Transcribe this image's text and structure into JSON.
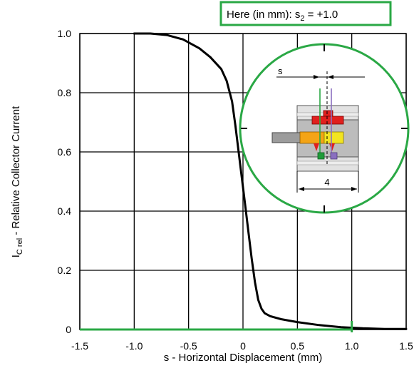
{
  "annotation": {
    "prefix": "Here (in mm): s",
    "sub": "2",
    "suffix": " = +1.0",
    "color": "#2aa845"
  },
  "inset": {
    "label_s": "s",
    "label_width": "4",
    "circle_color": "#2aa845"
  },
  "chart_data": {
    "type": "line",
    "title": "",
    "xlabel": "s - Horizontal Displacement (mm)",
    "ylabel_main": "I",
    "ylabel_sub": "C rel",
    "ylabel_rest": " - Relative Collector Current",
    "xlim": [
      -1.5,
      1.5
    ],
    "ylim": [
      0,
      1.0
    ],
    "x_ticks": [
      -1.5,
      -1.0,
      -0.5,
      0,
      0.5,
      1.0,
      1.5
    ],
    "x_tick_labels": [
      "-1.5",
      "-1.0",
      "-0.5",
      "0",
      "0.5",
      "1.0",
      "1.5"
    ],
    "y_ticks": [
      0,
      0.2,
      0.4,
      0.6,
      0.8,
      1.0
    ],
    "y_tick_labels": [
      "0",
      "0.2",
      "0.4",
      "0.6",
      "0.8",
      "1.0"
    ],
    "grid": true,
    "series": [
      {
        "color": "#000000",
        "x": [
          -1.0,
          -0.85,
          -0.7,
          -0.55,
          -0.4,
          -0.3,
          -0.2,
          -0.15,
          -0.1,
          -0.07,
          -0.04,
          -0.01,
          0.02,
          0.05,
          0.08,
          0.11,
          0.14,
          0.17,
          0.2,
          0.25,
          0.35,
          0.5,
          0.7,
          0.9,
          1.1,
          1.3,
          1.5
        ],
        "y": [
          1.0,
          1.0,
          0.995,
          0.98,
          0.95,
          0.92,
          0.88,
          0.84,
          0.77,
          0.69,
          0.6,
          0.51,
          0.42,
          0.33,
          0.24,
          0.16,
          0.1,
          0.07,
          0.055,
          0.045,
          0.035,
          0.025,
          0.015,
          0.008,
          0.004,
          0.002,
          0.002
        ]
      }
    ],
    "marker": {
      "x": 1.0,
      "color": "#2aa845"
    }
  }
}
